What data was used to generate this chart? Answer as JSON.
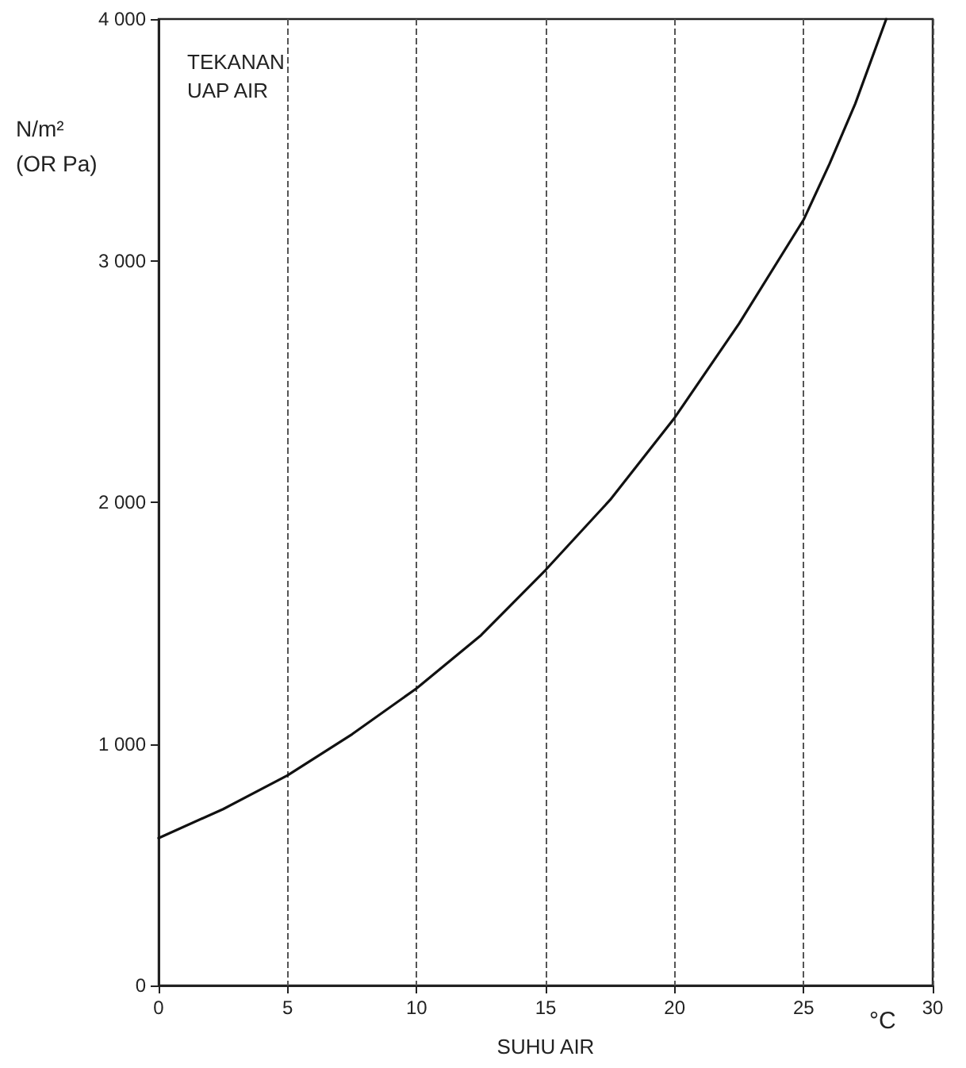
{
  "chart_data": {
    "type": "line",
    "title": "TEKANAN\nUAP AIR",
    "ylabel": "N/m²\n(OR Pa)",
    "xlabel": "SUHU AIR",
    "annotations": [
      "°C"
    ],
    "x": [
      0,
      2.5,
      5,
      7.5,
      10,
      12.5,
      15,
      17.5,
      20,
      22.5,
      25,
      26,
      27,
      28.2
    ],
    "series": [
      {
        "color": "#111111",
        "values": [
          610,
          730,
          870,
          1040,
          1230,
          1450,
          1720,
          2010,
          2350,
          2740,
          3170,
          3400,
          3650,
          4000
        ]
      }
    ],
    "xlim": [
      0,
      30
    ],
    "xticks": [
      0,
      5,
      10,
      15,
      20,
      25,
      30
    ],
    "ylim": [
      0,
      4000
    ],
    "yticks": [
      0,
      {
        "value": 1000,
        "label": "1 000"
      },
      {
        "value": 2000,
        "label": "2 000"
      },
      {
        "value": 3000,
        "label": "3 000"
      },
      {
        "value": 4000,
        "label": "4 000"
      }
    ],
    "grid": "x",
    "marker": "none",
    "line_style": "solid"
  }
}
